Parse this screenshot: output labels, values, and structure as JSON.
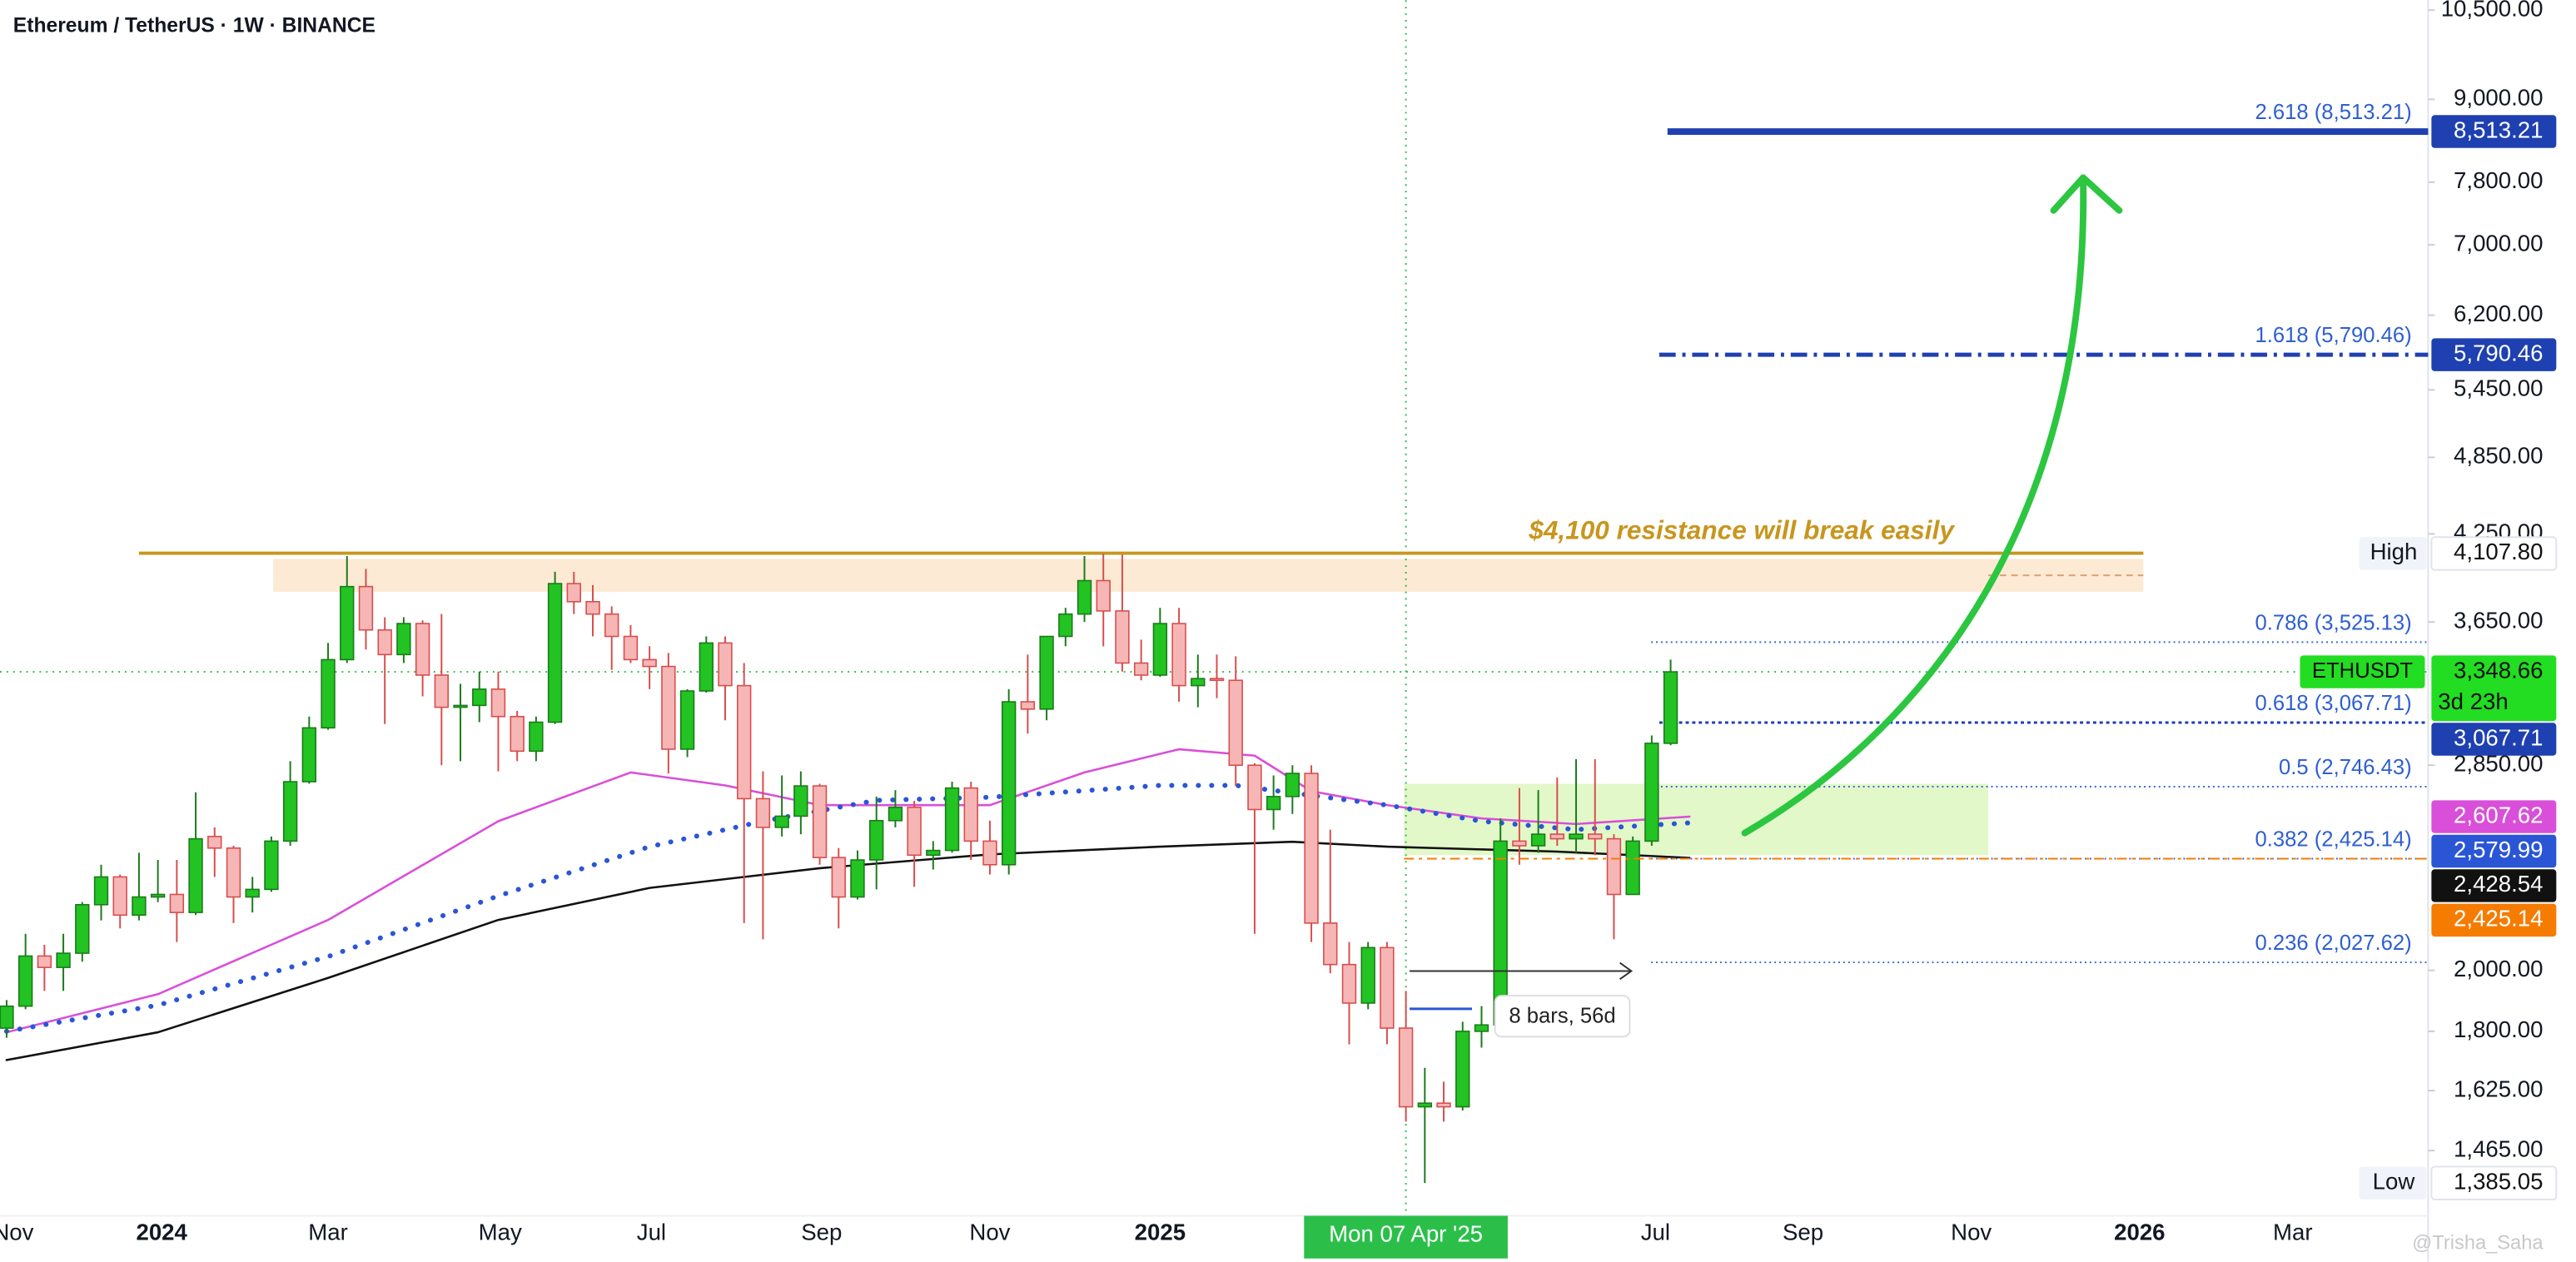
{
  "chart_data": {
    "type": "candlestick",
    "title": "Ethereum / TetherUS · 1W · BINANCE",
    "ohlc": [
      [
        1810,
        1900,
        1780,
        1880
      ],
      [
        1880,
        2130,
        1870,
        2050
      ],
      [
        2050,
        2090,
        1930,
        2010
      ],
      [
        2010,
        2130,
        1930,
        2060
      ],
      [
        2060,
        2250,
        2030,
        2240
      ],
      [
        2240,
        2400,
        2180,
        2350
      ],
      [
        2350,
        2360,
        2150,
        2200
      ],
      [
        2200,
        2450,
        2180,
        2270
      ],
      [
        2270,
        2420,
        2250,
        2280
      ],
      [
        2280,
        2420,
        2100,
        2210
      ],
      [
        2210,
        2720,
        2200,
        2510
      ],
      [
        2520,
        2560,
        2350,
        2470
      ],
      [
        2470,
        2480,
        2170,
        2270
      ],
      [
        2270,
        2350,
        2210,
        2300
      ],
      [
        2300,
        2520,
        2290,
        2500
      ],
      [
        2500,
        2870,
        2480,
        2770
      ],
      [
        2770,
        3100,
        2760,
        3040
      ],
      [
        3040,
        3520,
        3030,
        3420
      ],
      [
        3420,
        4090,
        3400,
        3880
      ],
      [
        3880,
        4000,
        3480,
        3600
      ],
      [
        3600,
        3680,
        3060,
        3450
      ],
      [
        3450,
        3680,
        3400,
        3640
      ],
      [
        3640,
        3660,
        3210,
        3330
      ],
      [
        3330,
        3700,
        2850,
        3150
      ],
      [
        3150,
        3280,
        2870,
        3160
      ],
      [
        3160,
        3350,
        3070,
        3250
      ],
      [
        3250,
        3350,
        2820,
        3100
      ],
      [
        3100,
        3130,
        2870,
        2920
      ],
      [
        2920,
        3100,
        2870,
        3070
      ],
      [
        3070,
        3980,
        3060,
        3900
      ],
      [
        3900,
        3980,
        3700,
        3780
      ],
      [
        3780,
        3890,
        3560,
        3700
      ],
      [
        3700,
        3750,
        3360,
        3560
      ],
      [
        3560,
        3630,
        3400,
        3420
      ],
      [
        3420,
        3500,
        3250,
        3380
      ],
      [
        3380,
        3460,
        2810,
        2930
      ],
      [
        2930,
        3250,
        2890,
        3240
      ],
      [
        3240,
        3560,
        3230,
        3520
      ],
      [
        3520,
        3560,
        3080,
        3270
      ],
      [
        3270,
        3400,
        2170,
        2690
      ],
      [
        2690,
        2820,
        2110,
        2560
      ],
      [
        2560,
        2800,
        2520,
        2610
      ],
      [
        2610,
        2820,
        2530,
        2750
      ],
      [
        2750,
        2760,
        2400,
        2430
      ],
      [
        2430,
        2470,
        2150,
        2270
      ],
      [
        2270,
        2460,
        2260,
        2420
      ],
      [
        2420,
        2700,
        2300,
        2590
      ],
      [
        2590,
        2730,
        2560,
        2650
      ],
      [
        2650,
        2680,
        2310,
        2440
      ],
      [
        2440,
        2500,
        2380,
        2460
      ],
      [
        2460,
        2770,
        2450,
        2740
      ],
      [
        2740,
        2770,
        2420,
        2500
      ],
      [
        2500,
        2590,
        2360,
        2400
      ],
      [
        2400,
        3250,
        2360,
        3180
      ],
      [
        3180,
        3450,
        3010,
        3140
      ],
      [
        3140,
        3560,
        3080,
        3560
      ],
      [
        3560,
        3740,
        3500,
        3700
      ],
      [
        3700,
        4090,
        3650,
        3920
      ],
      [
        3920,
        4107.8,
        3500,
        3720
      ],
      [
        3720,
        4100,
        3350,
        3400
      ],
      [
        3400,
        3540,
        3300,
        3330
      ],
      [
        3330,
        3740,
        3320,
        3640
      ],
      [
        3640,
        3740,
        3180,
        3270
      ],
      [
        3270,
        3450,
        3150,
        3310
      ],
      [
        3310,
        3450,
        3200,
        3300
      ],
      [
        3300,
        3440,
        2750,
        2850
      ],
      [
        2850,
        2860,
        2130,
        2640
      ],
      [
        2640,
        2800,
        2550,
        2700
      ],
      [
        2700,
        2850,
        2620,
        2810
      ],
      [
        2810,
        2850,
        2100,
        2170
      ],
      [
        2170,
        2550,
        1990,
        2020
      ],
      [
        2020,
        2100,
        1760,
        1890
      ],
      [
        1890,
        2100,
        1870,
        2080
      ],
      [
        2080,
        2100,
        1760,
        1810
      ],
      [
        1810,
        1930,
        1540,
        1580
      ],
      [
        1580,
        1690,
        1385.05,
        1590
      ],
      [
        1590,
        1650,
        1540,
        1580
      ],
      [
        1580,
        1830,
        1570,
        1800
      ],
      [
        1800,
        1880,
        1750,
        1820
      ],
      [
        1820,
        2600,
        1800,
        2500
      ],
      [
        2500,
        2740,
        2400,
        2480
      ],
      [
        2480,
        2730,
        2450,
        2530
      ],
      [
        2530,
        2790,
        2480,
        2510
      ],
      [
        2510,
        2880,
        2450,
        2530
      ],
      [
        2530,
        2880,
        2440,
        2510
      ],
      [
        2510,
        2530,
        2110,
        2280
      ],
      [
        2280,
        2520,
        2280,
        2500
      ],
      [
        2500,
        3000,
        2480,
        2960
      ],
      [
        2960,
        3420,
        2950,
        3348.66
      ]
    ],
    "up_color": "#22c322",
    "down_color": "#f6b6b6",
    "xlim": [
      -0.35,
      128.06
    ],
    "xticks": [
      {
        "value": 0.35,
        "label": "Nov"
      },
      {
        "value": 8.2,
        "label": "2024"
      },
      {
        "value": 17,
        "label": "Mar"
      },
      {
        "value": 26.1,
        "label": "May"
      },
      {
        "value": 34.1,
        "label": "Jul"
      },
      {
        "value": 43.1,
        "label": "Sep"
      },
      {
        "value": 52,
        "label": "Nov"
      },
      {
        "value": 61,
        "label": "2025"
      },
      {
        "value": 87.2,
        "label": "Jul"
      },
      {
        "value": 95,
        "label": "Sep"
      },
      {
        "value": 103.9,
        "label": "Nov"
      },
      {
        "value": 112.8,
        "label": "2026"
      },
      {
        "value": 120.9,
        "label": "Mar"
      }
    ],
    "ylim": [
      1309,
      10680
    ],
    "log_scale": true,
    "yticks": [
      {
        "value": 10500,
        "label": "10,500.00"
      },
      {
        "value": 9000,
        "label": "9,000.00"
      },
      {
        "value": 7800,
        "label": "7,800.00"
      },
      {
        "value": 7000,
        "label": "7,000.00"
      },
      {
        "value": 6200,
        "label": "6,200.00"
      },
      {
        "value": 5450,
        "label": "5,450.00"
      },
      {
        "value": 4850,
        "label": "4,850.00"
      },
      {
        "value": 4250,
        "label": "4,250.00"
      },
      {
        "value": 3650,
        "label": "3,650.00"
      },
      {
        "value": 2850,
        "label": "2,850.00"
      },
      {
        "value": 2000,
        "label": "2,000.00"
      },
      {
        "value": 1800,
        "label": "1,800.00"
      },
      {
        "value": 1625,
        "label": "1,625.00"
      },
      {
        "value": 1465,
        "label": "1,465.00"
      }
    ],
    "crosshair": {
      "x": 74.0,
      "x_label": "Mon 07 Apr '25",
      "y": 3348.66,
      "color": "#2bbf4a"
    },
    "moving_averages": [
      {
        "color": "#d94fd9",
        "style": "line",
        "x": [
          0,
          8,
          17,
          26,
          33,
          38,
          43,
          52,
          57,
          62,
          66,
          69,
          73,
          78,
          83,
          89
        ],
        "values": [
          1797,
          1919,
          2182,
          2587,
          2815,
          2752,
          2660,
          2660,
          2815,
          2930,
          2897,
          2725,
          2660,
          2600,
          2575,
          2607.62
        ]
      },
      {
        "color": "#2a56d6",
        "style": "dotted",
        "x": [
          0,
          8,
          17,
          26,
          34,
          40,
          46,
          52,
          61,
          65,
          69,
          73,
          78,
          83,
          89
        ],
        "values": [
          1800,
          1883,
          2048,
          2274,
          2476,
          2587,
          2682,
          2697,
          2752,
          2752,
          2705,
          2660,
          2587,
          2550,
          2579.99
        ]
      },
      {
        "color": "#111111",
        "style": "line",
        "x": [
          0,
          8,
          17,
          26,
          34,
          43,
          52,
          61,
          68,
          73,
          82,
          89
        ],
        "values": [
          1713,
          1797,
          1974,
          2182,
          2306,
          2386,
          2443,
          2476,
          2497,
          2476,
          2455,
          2428.54
        ]
      }
    ],
    "resistance": {
      "value": 4110,
      "color": "#c8961e",
      "label": "$4,100 resistance will break easily"
    },
    "zones": [
      {
        "range": [
          3845,
          4070
        ],
        "color": "#fde6cc"
      },
      {
        "range": [
          2440,
          2760
        ],
        "color": "#ddf7c0"
      }
    ],
    "fib_levels": [
      {
        "value": 8513.21,
        "label": "2.618 (8,513.21)",
        "style": "solid"
      },
      {
        "value": 5790.46,
        "label": "1.618 (5,790.46)",
        "style": "dashdot"
      },
      {
        "value": 3525.13,
        "label": "0.786 (3,525.13)",
        "style": "dotted"
      },
      {
        "value": 3067.71,
        "label": "0.618 (3,067.71)",
        "style": "dashed"
      },
      {
        "value": 2746.43,
        "label": "0.5 (2,746.43)",
        "style": "dotted"
      },
      {
        "value": 2425.14,
        "label": "0.382 (2,425.14)",
        "style": "dotted"
      },
      {
        "value": 2027.62,
        "label": "0.236 (2,027.62)",
        "style": "dotted"
      }
    ],
    "price_tags": [
      {
        "value": 8513.21,
        "label": "8,513.21",
        "color": "#1e40b0",
        "text_color": "#ffffff"
      },
      {
        "value": 5790.46,
        "label": "5,790.46",
        "color": "#1e40b0",
        "text_color": "#ffffff"
      },
      {
        "value": 4107.8,
        "label": "4,107.80",
        "caption": "High",
        "color": "#ffffff",
        "text_color": "#111111"
      },
      {
        "value": 3348.66,
        "label": "3,348.66",
        "symbol": "ETHUSDT",
        "countdown": "3d 23h",
        "color": "#22dd22",
        "text_color": "#111111"
      },
      {
        "value": 3067.71,
        "label": "3,067.71",
        "color": "#1e40b0",
        "text_color": "#ffffff"
      },
      {
        "value": 2607.62,
        "label": "2,607.62",
        "color": "#d94fd9",
        "text_color": "#ffffff"
      },
      {
        "value": 2579.99,
        "label": "2,579.99",
        "color": "#2a56d6",
        "text_color": "#ffffff"
      },
      {
        "value": 2428.54,
        "label": "2,428.54",
        "color": "#111111",
        "text_color": "#ffffff"
      },
      {
        "value": 2425.14,
        "label": "2,425.14",
        "color": "#f57c00",
        "text_color": "#ffffff",
        "dashed_line": true
      },
      {
        "value": 1385.05,
        "label": "1,385.05",
        "caption": "Low",
        "color": "#ffffff",
        "text_color": "#111111"
      }
    ],
    "measure_label": "8 bars, 56d",
    "watermark": "@Trisha_Saha"
  }
}
